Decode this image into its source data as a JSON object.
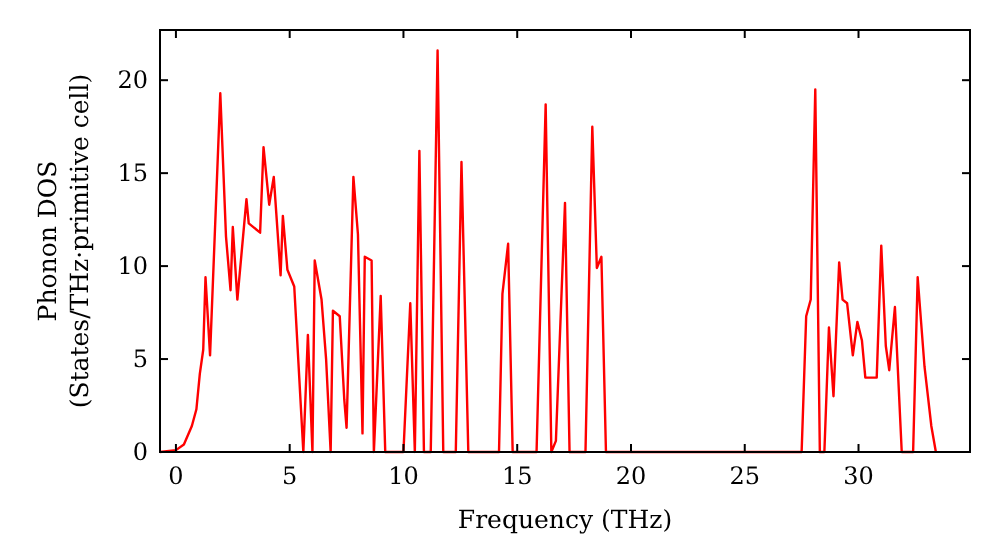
{
  "chart_data": {
    "type": "line",
    "xlabel": "Frequency (THz)",
    "ylabel": "Phonon DOS\n(States/THz·primitive cell)",
    "xlim": [
      -0.7,
      34.9
    ],
    "ylim": [
      0,
      22.7
    ],
    "xticks": [
      0,
      5,
      10,
      15,
      20,
      25,
      30
    ],
    "yticks": [
      0,
      5,
      10,
      15,
      20
    ],
    "grid": false,
    "marker": "none",
    "line_style": "solid",
    "series": [
      {
        "color": "#ff0000",
        "x": [
          -0.7,
          0,
          0.35,
          0.7,
          0.9,
          1.05,
          1.2,
          1.3,
          1.5,
          1.95,
          2.2,
          2.4,
          2.5,
          2.7,
          3.1,
          3.2,
          3.7,
          3.85,
          4.1,
          4.3,
          4.6,
          4.7,
          4.9,
          5.2,
          5.6,
          5.8,
          6.0,
          6.1,
          6.4,
          6.6,
          6.8,
          6.9,
          7.2,
          7.4,
          7.5,
          7.8,
          8.0,
          8.2,
          8.3,
          8.6,
          8.7,
          9.0,
          9.2,
          10.0,
          10.3,
          10.5,
          10.7,
          10.9,
          11.2,
          11.5,
          11.75,
          12.3,
          12.55,
          12.85,
          14.2,
          14.35,
          14.6,
          14.8,
          15.85,
          16.25,
          16.5,
          16.7,
          17.1,
          17.3,
          18.0,
          18.3,
          18.5,
          18.7,
          18.9,
          27.5,
          27.7,
          27.9,
          28.1,
          28.3,
          28.5,
          28.7,
          28.9,
          29.15,
          29.3,
          29.5,
          29.75,
          29.95,
          30.15,
          30.3,
          30.8,
          31.0,
          31.2,
          31.35,
          31.6,
          31.9,
          32.4,
          32.6,
          32.9,
          33.2,
          33.4
        ],
        "values": [
          0,
          0.1,
          0.4,
          1.4,
          2.3,
          4.2,
          5.5,
          9.4,
          5.2,
          19.3,
          11.6,
          8.7,
          12.1,
          8.2,
          13.6,
          12.3,
          11.8,
          16.4,
          13.3,
          14.8,
          9.5,
          12.7,
          9.8,
          8.9,
          0,
          6.3,
          0,
          10.3,
          8.2,
          5,
          0,
          7.6,
          7.3,
          2.8,
          1.3,
          14.8,
          11.7,
          1,
          10.5,
          10.3,
          0,
          8.4,
          0,
          0,
          8,
          0,
          16.2,
          0,
          0,
          21.6,
          0,
          0,
          15.6,
          0,
          0,
          8.5,
          11.2,
          0,
          0,
          18.7,
          0,
          0.6,
          13.4,
          0,
          0,
          17.5,
          9.9,
          10.5,
          0,
          0,
          7.3,
          8.2,
          19.5,
          0,
          0,
          6.7,
          3.0,
          10.2,
          8.2,
          8.0,
          5.2,
          7.0,
          6.0,
          4.0,
          4.0,
          11.1,
          5.7,
          4.4,
          7.8,
          0,
          0,
          9.4,
          4.6,
          1.4,
          0
        ]
      }
    ]
  }
}
